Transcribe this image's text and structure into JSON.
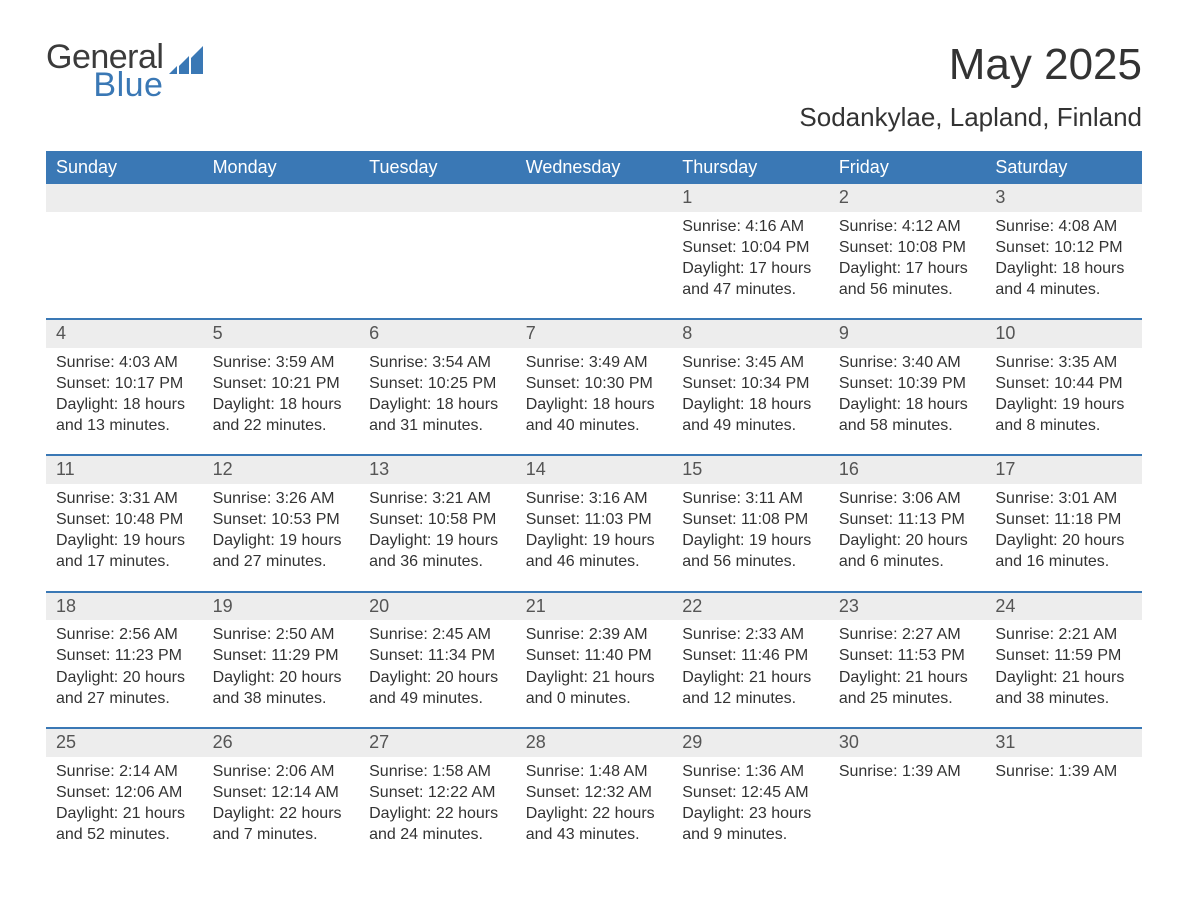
{
  "logo": {
    "general": "General",
    "blue": "Blue",
    "accent_color": "#3a78b5",
    "text_color": "#3b3b3b"
  },
  "header": {
    "month": "May 2025",
    "location": "Sodankylae, Lapland, Finland"
  },
  "colors": {
    "header_bg": "#3a78b5",
    "header_text": "#ffffff",
    "daynum_bg": "#ededed",
    "daynum_text": "#555555",
    "body_text": "#333333",
    "border": "#3a78b5",
    "page_bg": "#ffffff"
  },
  "day_labels": [
    "Sunday",
    "Monday",
    "Tuesday",
    "Wednesday",
    "Thursday",
    "Friday",
    "Saturday"
  ],
  "weeks": [
    [
      {
        "n": "",
        "lines": []
      },
      {
        "n": "",
        "lines": []
      },
      {
        "n": "",
        "lines": []
      },
      {
        "n": "",
        "lines": []
      },
      {
        "n": "1",
        "lines": [
          "Sunrise: 4:16 AM",
          "Sunset: 10:04 PM",
          "Daylight: 17 hours",
          "and 47 minutes."
        ]
      },
      {
        "n": "2",
        "lines": [
          "Sunrise: 4:12 AM",
          "Sunset: 10:08 PM",
          "Daylight: 17 hours",
          "and 56 minutes."
        ]
      },
      {
        "n": "3",
        "lines": [
          "Sunrise: 4:08 AM",
          "Sunset: 10:12 PM",
          "Daylight: 18 hours",
          "and 4 minutes."
        ]
      }
    ],
    [
      {
        "n": "4",
        "lines": [
          "Sunrise: 4:03 AM",
          "Sunset: 10:17 PM",
          "Daylight: 18 hours",
          "and 13 minutes."
        ]
      },
      {
        "n": "5",
        "lines": [
          "Sunrise: 3:59 AM",
          "Sunset: 10:21 PM",
          "Daylight: 18 hours",
          "and 22 minutes."
        ]
      },
      {
        "n": "6",
        "lines": [
          "Sunrise: 3:54 AM",
          "Sunset: 10:25 PM",
          "Daylight: 18 hours",
          "and 31 minutes."
        ]
      },
      {
        "n": "7",
        "lines": [
          "Sunrise: 3:49 AM",
          "Sunset: 10:30 PM",
          "Daylight: 18 hours",
          "and 40 minutes."
        ]
      },
      {
        "n": "8",
        "lines": [
          "Sunrise: 3:45 AM",
          "Sunset: 10:34 PM",
          "Daylight: 18 hours",
          "and 49 minutes."
        ]
      },
      {
        "n": "9",
        "lines": [
          "Sunrise: 3:40 AM",
          "Sunset: 10:39 PM",
          "Daylight: 18 hours",
          "and 58 minutes."
        ]
      },
      {
        "n": "10",
        "lines": [
          "Sunrise: 3:35 AM",
          "Sunset: 10:44 PM",
          "Daylight: 19 hours",
          "and 8 minutes."
        ]
      }
    ],
    [
      {
        "n": "11",
        "lines": [
          "Sunrise: 3:31 AM",
          "Sunset: 10:48 PM",
          "Daylight: 19 hours",
          "and 17 minutes."
        ]
      },
      {
        "n": "12",
        "lines": [
          "Sunrise: 3:26 AM",
          "Sunset: 10:53 PM",
          "Daylight: 19 hours",
          "and 27 minutes."
        ]
      },
      {
        "n": "13",
        "lines": [
          "Sunrise: 3:21 AM",
          "Sunset: 10:58 PM",
          "Daylight: 19 hours",
          "and 36 minutes."
        ]
      },
      {
        "n": "14",
        "lines": [
          "Sunrise: 3:16 AM",
          "Sunset: 11:03 PM",
          "Daylight: 19 hours",
          "and 46 minutes."
        ]
      },
      {
        "n": "15",
        "lines": [
          "Sunrise: 3:11 AM",
          "Sunset: 11:08 PM",
          "Daylight: 19 hours",
          "and 56 minutes."
        ]
      },
      {
        "n": "16",
        "lines": [
          "Sunrise: 3:06 AM",
          "Sunset: 11:13 PM",
          "Daylight: 20 hours",
          "and 6 minutes."
        ]
      },
      {
        "n": "17",
        "lines": [
          "Sunrise: 3:01 AM",
          "Sunset: 11:18 PM",
          "Daylight: 20 hours",
          "and 16 minutes."
        ]
      }
    ],
    [
      {
        "n": "18",
        "lines": [
          "Sunrise: 2:56 AM",
          "Sunset: 11:23 PM",
          "Daylight: 20 hours",
          "and 27 minutes."
        ]
      },
      {
        "n": "19",
        "lines": [
          "Sunrise: 2:50 AM",
          "Sunset: 11:29 PM",
          "Daylight: 20 hours",
          "and 38 minutes."
        ]
      },
      {
        "n": "20",
        "lines": [
          "Sunrise: 2:45 AM",
          "Sunset: 11:34 PM",
          "Daylight: 20 hours",
          "and 49 minutes."
        ]
      },
      {
        "n": "21",
        "lines": [
          "Sunrise: 2:39 AM",
          "Sunset: 11:40 PM",
          "Daylight: 21 hours",
          "and 0 minutes."
        ]
      },
      {
        "n": "22",
        "lines": [
          "Sunrise: 2:33 AM",
          "Sunset: 11:46 PM",
          "Daylight: 21 hours",
          "and 12 minutes."
        ]
      },
      {
        "n": "23",
        "lines": [
          "Sunrise: 2:27 AM",
          "Sunset: 11:53 PM",
          "Daylight: 21 hours",
          "and 25 minutes."
        ]
      },
      {
        "n": "24",
        "lines": [
          "Sunrise: 2:21 AM",
          "Sunset: 11:59 PM",
          "Daylight: 21 hours",
          "and 38 minutes."
        ]
      }
    ],
    [
      {
        "n": "25",
        "lines": [
          "Sunrise: 2:14 AM",
          "Sunset: 12:06 AM",
          "Daylight: 21 hours",
          "and 52 minutes."
        ]
      },
      {
        "n": "26",
        "lines": [
          "Sunrise: 2:06 AM",
          "Sunset: 12:14 AM",
          "Daylight: 22 hours",
          "and 7 minutes."
        ]
      },
      {
        "n": "27",
        "lines": [
          "Sunrise: 1:58 AM",
          "Sunset: 12:22 AM",
          "Daylight: 22 hours",
          "and 24 minutes."
        ]
      },
      {
        "n": "28",
        "lines": [
          "Sunrise: 1:48 AM",
          "Sunset: 12:32 AM",
          "Daylight: 22 hours",
          "and 43 minutes."
        ]
      },
      {
        "n": "29",
        "lines": [
          "Sunrise: 1:36 AM",
          "Sunset: 12:45 AM",
          "Daylight: 23 hours",
          "and 9 minutes."
        ]
      },
      {
        "n": "30",
        "lines": [
          "Sunrise: 1:39 AM"
        ]
      },
      {
        "n": "31",
        "lines": [
          "Sunrise: 1:39 AM"
        ]
      }
    ]
  ]
}
